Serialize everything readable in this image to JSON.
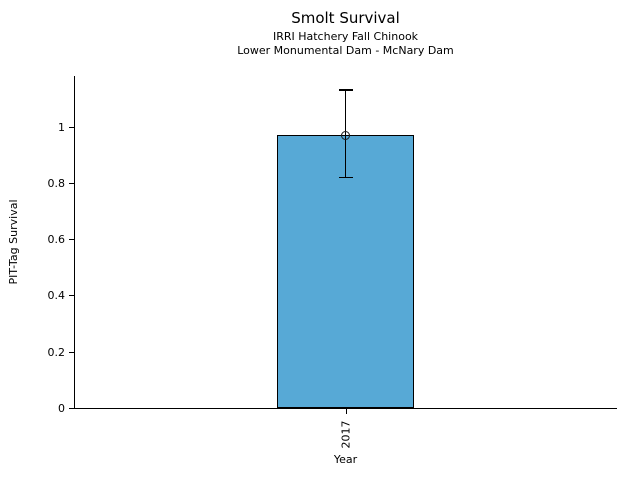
{
  "chart_data": {
    "type": "bar",
    "title": "Smolt Survival",
    "subtitle": [
      "IRRI Hatchery Fall Chinook",
      "Lower Monumental Dam - McNary Dam"
    ],
    "xlabel": "Year",
    "ylabel": "PIT-Tag Survival",
    "categories": [
      "2017"
    ],
    "values": [
      0.97
    ],
    "error_low": [
      0.82
    ],
    "error_high": [
      1.13
    ],
    "yticks": [
      0,
      0.2,
      0.4,
      0.6,
      0.8,
      1
    ],
    "ytick_labels": [
      "0",
      "0.2",
      "0.4",
      "0.6",
      "0.8",
      "1"
    ],
    "ylim": [
      0,
      1.18
    ],
    "grid": false,
    "legend": "none",
    "marker": "open-circle",
    "colors": {
      "bar_fill": "#57A9D6",
      "bar_edge": "#000000",
      "error_bar": "#000000",
      "marker_edge": "#1a1a1a",
      "text": "#000000",
      "background": "#ffffff"
    }
  }
}
